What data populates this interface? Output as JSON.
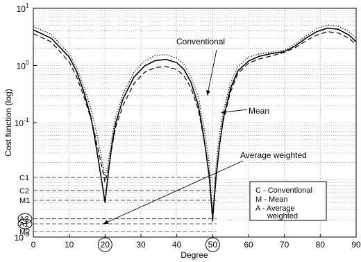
{
  "chart_data": {
    "type": "line",
    "title": "",
    "xlabel": "Degree",
    "ylabel": "Cost function (log)",
    "xlim": [
      0,
      90
    ],
    "ylim": [
      0.001,
      10
    ],
    "yscale": "log",
    "grid": true,
    "x_ticks": [
      {
        "v": 0,
        "label": "0"
      },
      {
        "v": 10,
        "label": "10"
      },
      {
        "v": 20,
        "label": "20"
      },
      {
        "v": 30,
        "label": "30"
      },
      {
        "v": 40,
        "label": "40"
      },
      {
        "v": 50,
        "label": "50"
      },
      {
        "v": 60,
        "label": "60"
      },
      {
        "v": 70,
        "label": "70"
      },
      {
        "v": 80,
        "label": "80"
      },
      {
        "v": 90,
        "label": "90"
      }
    ],
    "y_ticks": [
      {
        "v": 10,
        "base": "10",
        "exp": "1"
      },
      {
        "v": 1,
        "base": "10",
        "exp": "0"
      },
      {
        "v": 0.1,
        "base": "10",
        "exp": "-1"
      },
      {
        "v": 0.001,
        "base": "10",
        "exp": "-3"
      }
    ],
    "circled_ticks": [
      "20",
      "50"
    ],
    "series": [
      {
        "name": "Conventional",
        "style": "dotted",
        "x": [
          0,
          5,
          10,
          12,
          14,
          16,
          17,
          18,
          19,
          20,
          21,
          22,
          23,
          25,
          28,
          31,
          34,
          37,
          40,
          42,
          44,
          46,
          47,
          48,
          49,
          50,
          51,
          52,
          53,
          55,
          57,
          60,
          63,
          66,
          70,
          73,
          76,
          79,
          82,
          85,
          88,
          90
        ],
        "y": [
          4.8,
          3.5,
          1.6,
          0.95,
          0.45,
          0.18,
          0.1,
          0.052,
          0.025,
          0.011,
          0.022,
          0.06,
          0.13,
          0.32,
          0.75,
          1.2,
          1.5,
          1.55,
          1.35,
          1.05,
          0.62,
          0.28,
          0.13,
          0.055,
          0.02,
          0.0025,
          0.02,
          0.07,
          0.16,
          0.5,
          0.95,
          1.4,
          1.6,
          1.7,
          1.85,
          2.4,
          3.3,
          4.4,
          5.1,
          4.9,
          3.9,
          3.0
        ]
      },
      {
        "name": "Mean",
        "style": "solid",
        "x": [
          0,
          5,
          10,
          12,
          14,
          16,
          17,
          18,
          19,
          20,
          21,
          22,
          23,
          25,
          28,
          31,
          34,
          37,
          40,
          42,
          44,
          46,
          47,
          48,
          49,
          50,
          51,
          52,
          53,
          55,
          57,
          60,
          63,
          66,
          70,
          73,
          76,
          79,
          82,
          85,
          88,
          90
        ],
        "y": [
          4.2,
          3.0,
          1.4,
          0.8,
          0.36,
          0.13,
          0.06,
          0.025,
          0.01,
          0.004,
          0.015,
          0.045,
          0.1,
          0.26,
          0.62,
          0.98,
          1.22,
          1.28,
          1.12,
          0.85,
          0.5,
          0.2,
          0.09,
          0.035,
          0.012,
          0.0022,
          0.012,
          0.045,
          0.12,
          0.4,
          0.8,
          1.2,
          1.45,
          1.6,
          1.75,
          2.2,
          3.0,
          3.9,
          4.5,
          4.3,
          3.4,
          2.6
        ]
      },
      {
        "name": "Average weighted",
        "style": "dashed",
        "x": [
          0,
          5,
          10,
          12,
          14,
          16,
          17,
          18,
          19,
          20,
          21,
          22,
          23,
          25,
          28,
          31,
          34,
          37,
          40,
          42,
          44,
          46,
          47,
          48,
          49,
          50,
          51,
          52,
          53,
          55,
          57,
          60,
          63,
          66,
          70,
          73,
          76,
          79,
          82,
          85,
          88,
          90
        ],
        "y": [
          3.6,
          2.6,
          1.15,
          0.65,
          0.3,
          0.12,
          0.07,
          0.035,
          0.018,
          0.009,
          0.016,
          0.04,
          0.085,
          0.2,
          0.48,
          0.76,
          0.92,
          0.96,
          0.85,
          0.66,
          0.4,
          0.17,
          0.08,
          0.035,
          0.013,
          0.0018,
          0.013,
          0.045,
          0.11,
          0.35,
          0.72,
          1.1,
          1.3,
          1.45,
          1.7,
          2.05,
          2.7,
          3.4,
          3.9,
          3.7,
          3.0,
          2.3
        ]
      }
    ],
    "reference_lines": [
      {
        "label": "C1",
        "y": 0.011
      },
      {
        "label": "C2",
        "y": 0.0065
      },
      {
        "label": "M1",
        "y": 0.0044
      },
      {
        "label": "A2",
        "y": 0.0021
      },
      {
        "label": "A1",
        "y": 0.0017
      },
      {
        "label": "M2",
        "y": 0.00125
      }
    ],
    "circled_ref_labels": [
      "A2",
      "A1"
    ],
    "annotations": [
      {
        "text": "Conventional",
        "target_x": 48.5,
        "target_y": 0.3
      },
      {
        "text": "Mean",
        "target_x": 52.3,
        "target_y": 0.15
      },
      {
        "text": "Average weighted",
        "target_x": 19.5,
        "target_y": 0.0017
      }
    ],
    "legend": {
      "position": "bottom-right",
      "lines": [
        "C - Conventional",
        "M - Mean",
        "A - Average",
        "weighted"
      ]
    }
  }
}
